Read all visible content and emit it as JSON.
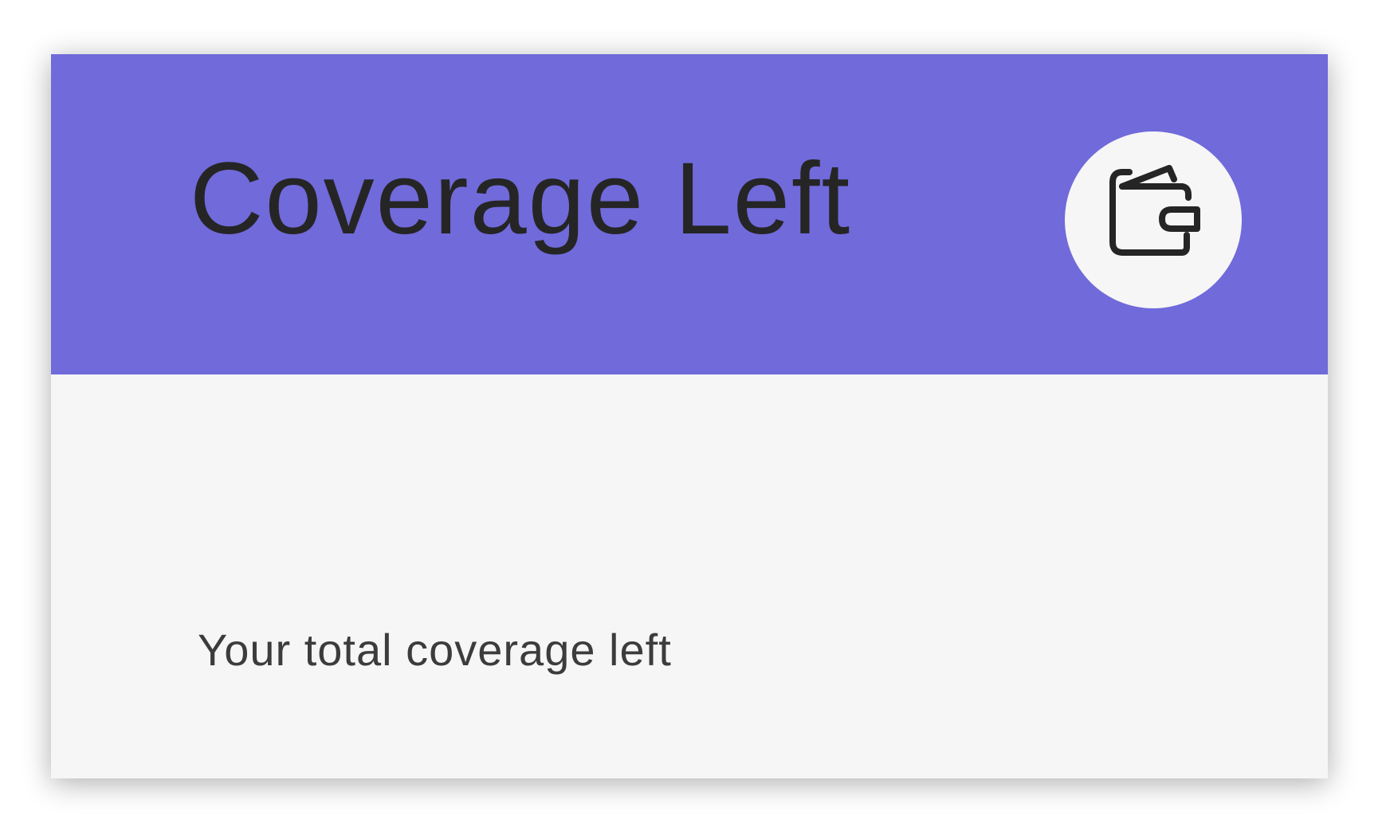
{
  "card": {
    "title": "Coverage Left",
    "subtitle": "Your total coverage left",
    "icon": "wallet-icon"
  },
  "colors": {
    "header_background": "#706adb",
    "body_background": "#f6f6f6",
    "icon_background": "#f6f6f6",
    "text": "#252525",
    "subtitle_text": "#3c3c3c"
  }
}
